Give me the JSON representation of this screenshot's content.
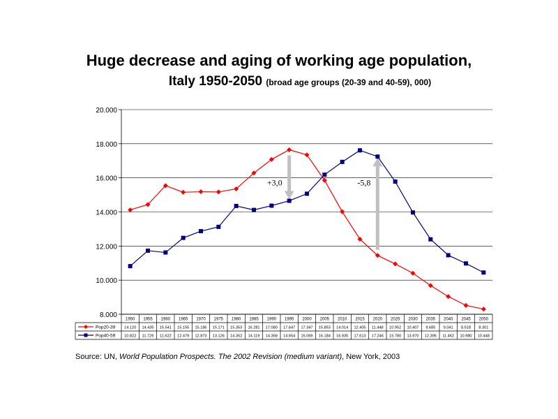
{
  "title": "Huge decrease and aging of working age population,",
  "subtitle_main": "Italy 1950-2050",
  "subtitle_note": "(broad age groups (20-39 and 40-59), 000)",
  "source": {
    "prefix": "Source: UN, ",
    "italic": "World Population Prospects. The 2002 Revision (medium variant)",
    "suffix": ", New York, 2003"
  },
  "colors": {
    "pop20_39": "#ff0000",
    "pop40_59": "#000080",
    "arrow": "#c0c0c0"
  },
  "chart_data": {
    "type": "line",
    "x": [
      "1950",
      "1955",
      "1960",
      "1965",
      "1970",
      "1975",
      "1980",
      "1985",
      "1990",
      "1995",
      "2000",
      "2005",
      "2010",
      "2015",
      "2020",
      "2025",
      "2030",
      "2035",
      "2040",
      "2045",
      "2050"
    ],
    "ylim": [
      8000,
      20000
    ],
    "yticks": [
      8000,
      10000,
      12000,
      14000,
      16000,
      18000,
      20000
    ],
    "ytick_labels": [
      "8.000",
      "10.000",
      "12.000",
      "14.000",
      "16.000",
      "18.000",
      "20.000"
    ],
    "grid": true,
    "legend": "data-table",
    "series": [
      {
        "name": "Pop20-39",
        "marker": "diamond",
        "values": [
          14120,
          14435,
          15541,
          15155,
          15186,
          15171,
          15353,
          16281,
          17080,
          17647,
          17347,
          15853,
          14014,
          12405,
          11448,
          10952,
          10407,
          9685,
          9041,
          8518,
          8301
        ],
        "labels": [
          "14.120",
          "14.435",
          "15.541",
          "15.155",
          "15.186",
          "15.171",
          "15.353",
          "16.281",
          "17.080",
          "17.647",
          "17.347",
          "15.853",
          "14.014",
          "12.405",
          "11.448",
          "10.952",
          "10.407",
          "9.685",
          "9.041",
          "8.518",
          "8.301"
        ]
      },
      {
        "name": "Pop40-59",
        "marker": "square",
        "values": [
          10822,
          11729,
          11622,
          12479,
          12873,
          13126,
          14352,
          14119,
          14368,
          14654,
          15069,
          16184,
          16935,
          17613,
          17246,
          15780,
          13970,
          12395,
          11462,
          10980,
          10448
        ],
        "labels": [
          "10.822",
          "11.729",
          "11.622",
          "12.479",
          "12.873",
          "13.126",
          "14.352",
          "14.119",
          "14.368",
          "14.654",
          "15.069",
          "16.184",
          "16.935",
          "17.613",
          "17.246",
          "15.780",
          "13.970",
          "12.395",
          "11.462",
          "10.980",
          "10.448"
        ]
      }
    ],
    "annotations": [
      {
        "text": "+3,0",
        "x": "1995",
        "from": 17647,
        "to": 14654,
        "direction": "down"
      },
      {
        "text": "-5,8",
        "x": "2020",
        "from": 11448,
        "to": 17246,
        "direction": "up"
      }
    ]
  }
}
